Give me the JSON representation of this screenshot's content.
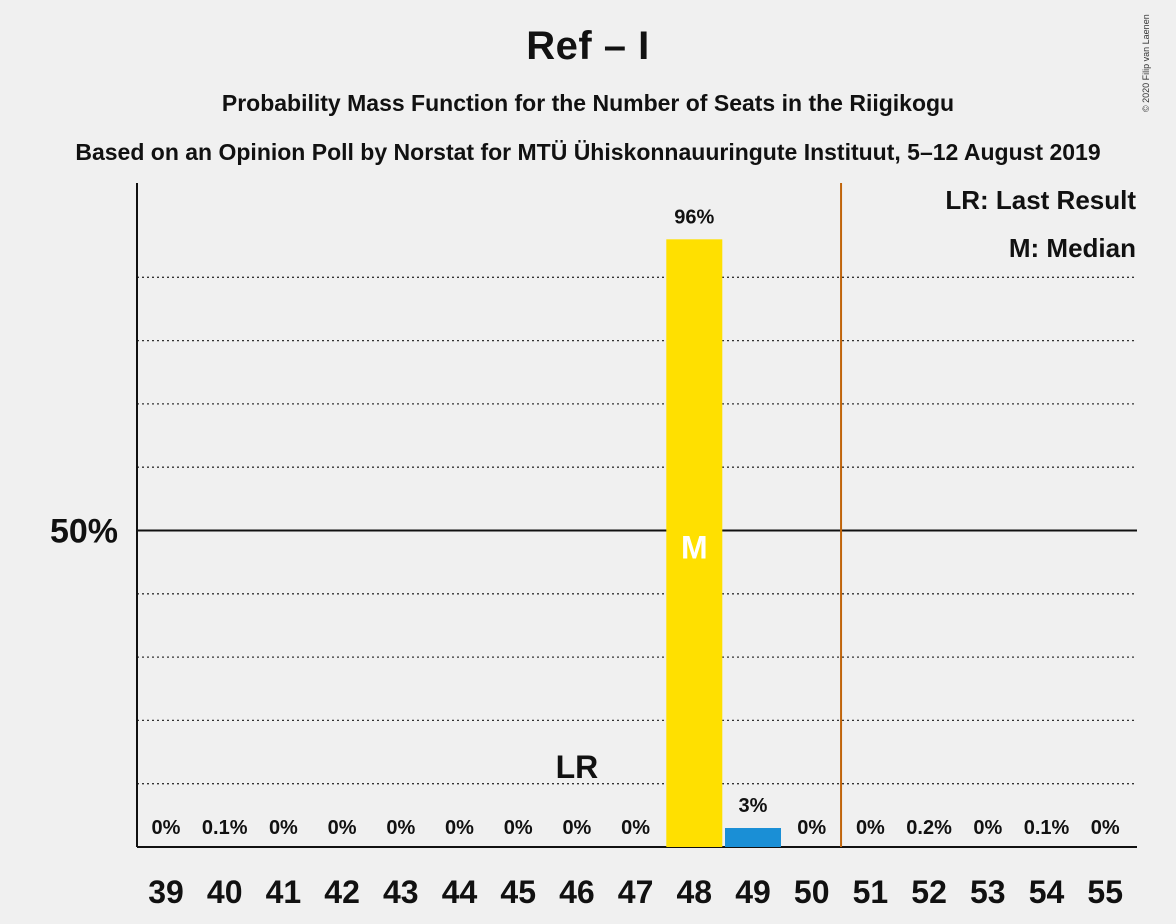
{
  "header": {
    "title": "Ref – I",
    "subtitle": "Probability Mass Function for the Number of Seats in the Riigikogu",
    "subtitle2": "Based on an Opinion Poll by Norstat for MTÜ Ühiskonnauuringute Instituut, 5–12 August 2019",
    "copyright": "© 2020 Filip van Laenen"
  },
  "chart_data": {
    "type": "bar",
    "categories": [
      "39",
      "40",
      "41",
      "42",
      "43",
      "44",
      "45",
      "46",
      "47",
      "48",
      "49",
      "50",
      "51",
      "52",
      "53",
      "54",
      "55"
    ],
    "values": [
      0,
      0.1,
      0,
      0,
      0,
      0,
      0,
      0,
      0,
      96,
      3,
      0,
      0,
      0.2,
      0,
      0.1,
      0
    ],
    "value_labels": [
      "0%",
      "0.1%",
      "0%",
      "0%",
      "0%",
      "0%",
      "0%",
      "0%",
      "0%",
      "96%",
      "3%",
      "0%",
      "0%",
      "0.2%",
      "0%",
      "0.1%",
      "0%"
    ],
    "ylim": [
      0,
      100
    ],
    "y_tick_label": {
      "value": 50,
      "label": "50%"
    },
    "grid": "dotted every 10%",
    "majority_seat_line": 51,
    "last_result": {
      "seat": "46",
      "label": "LR"
    },
    "median": {
      "seat": "48",
      "label": "M"
    },
    "legend": [
      "LR: Last Result",
      "M: Median"
    ],
    "legend_position": "top-right",
    "colors": {
      "median_bar": "#ffe000",
      "other_bar": "#1a8fd6",
      "majority_line": "#c0640a",
      "background": "#f0f0f0"
    }
  }
}
